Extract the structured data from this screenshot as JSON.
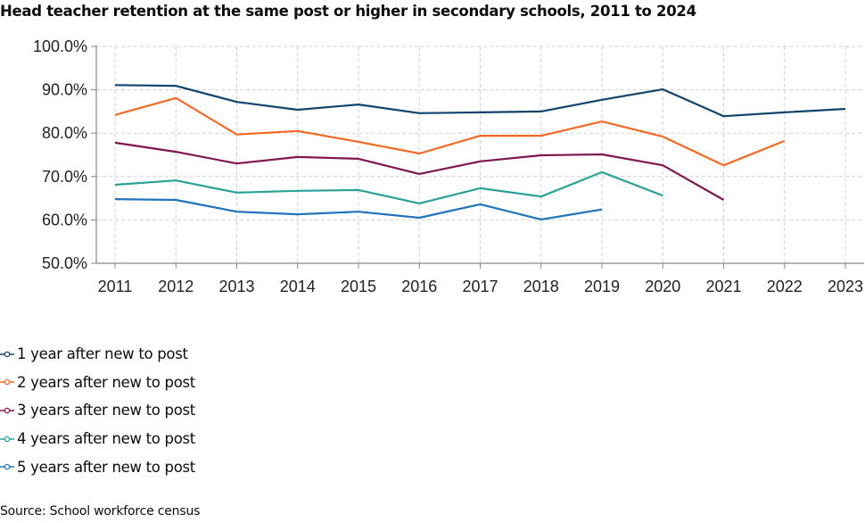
{
  "chart_data": {
    "type": "line",
    "title": "Head teacher retention at the same post or higher in secondary schools, 2011 to 2024",
    "xlabel": "",
    "ylabel": "",
    "x": [
      "2011",
      "2012",
      "2013",
      "2014",
      "2015",
      "2016",
      "2017",
      "2018",
      "2019",
      "2020",
      "2021",
      "2022",
      "2023"
    ],
    "y_ticks": [
      "50.0%",
      "60.0%",
      "70.0%",
      "80.0%",
      "90.0%",
      "100.0%"
    ],
    "y_tick_values": [
      50,
      60,
      70,
      80,
      90,
      100
    ],
    "ylim": [
      50,
      100
    ],
    "grid": true,
    "legend_position": "bottom-left",
    "series": [
      {
        "name": "1 year after new to post",
        "color": "#12436d",
        "values": [
          91.1,
          90.9,
          87.2,
          85.4,
          86.6,
          84.6,
          84.8,
          85.0,
          87.7,
          90.1,
          83.9,
          84.8,
          85.6
        ]
      },
      {
        "name": "2 years after new to post",
        "color": "#f46a25",
        "values": [
          84.2,
          88.1,
          79.7,
          80.5,
          78.0,
          75.3,
          79.4,
          79.4,
          82.7,
          79.2,
          72.6,
          78.2,
          null
        ]
      },
      {
        "name": "3 years after new to post",
        "color": "#801650",
        "values": [
          77.8,
          75.7,
          73.0,
          74.5,
          74.1,
          70.6,
          73.5,
          74.9,
          75.1,
          72.6,
          64.6,
          null,
          null
        ]
      },
      {
        "name": "4 years after new to post",
        "color": "#28a197",
        "values": [
          68.1,
          69.1,
          66.3,
          66.7,
          66.9,
          63.8,
          67.3,
          65.4,
          71.0,
          65.6,
          null,
          null,
          null
        ]
      },
      {
        "name": "5 years after new to post",
        "color": "#2073bc",
        "values": [
          64.8,
          64.6,
          61.9,
          61.3,
          61.9,
          60.5,
          63.6,
          60.1,
          62.4,
          null,
          null,
          null,
          null
        ]
      }
    ]
  },
  "source": "Source: School workforce census"
}
